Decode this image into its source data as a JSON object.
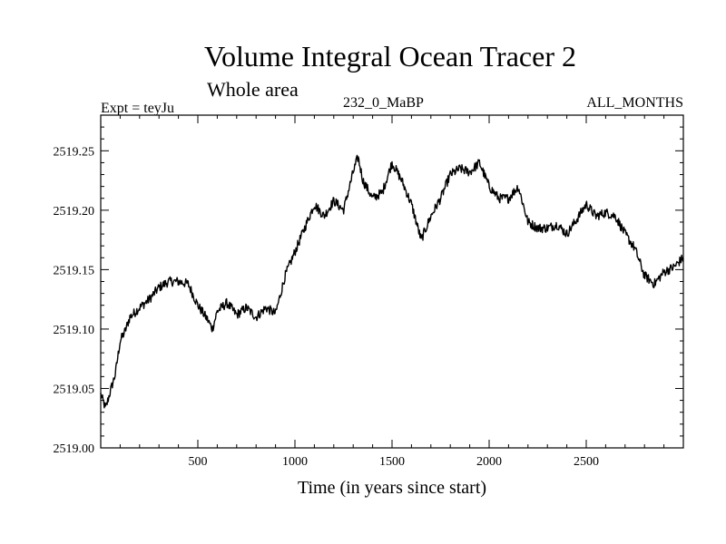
{
  "chart_data": {
    "type": "line",
    "title": "Volume Integral Ocean Tracer 2",
    "subtitle": "Whole area",
    "header_left": "Expt = teyJu",
    "header_center": "232_0_MaBP",
    "header_right": "ALL_MONTHS",
    "xlabel": "Time (in years since start)",
    "ylabel": "",
    "xlim": [
      0,
      3000
    ],
    "ylim": [
      2519.0,
      2519.28
    ],
    "x_ticks": [
      500,
      1000,
      1500,
      2000,
      2500
    ],
    "x_tick_labels": [
      "500",
      "1000",
      "1500",
      "2000",
      "2500"
    ],
    "y_ticks": [
      2519.0,
      2519.05,
      2519.1,
      2519.15,
      2519.2,
      2519.25
    ],
    "y_tick_labels": [
      "2519.00",
      "2519.05",
      "2519.10",
      "2519.15",
      "2519.20",
      "2519.25"
    ],
    "grid": false,
    "series": [
      {
        "color": "#000000",
        "x": [
          0,
          25,
          50,
          75,
          100,
          125,
          150,
          200,
          250,
          300,
          350,
          400,
          450,
          500,
          550,
          575,
          600,
          650,
          700,
          750,
          800,
          850,
          900,
          950,
          1000,
          1050,
          1100,
          1150,
          1200,
          1250,
          1300,
          1325,
          1350,
          1400,
          1450,
          1500,
          1550,
          1600,
          1650,
          1700,
          1750,
          1800,
          1850,
          1900,
          1950,
          2000,
          2050,
          2100,
          2150,
          2200,
          2250,
          2300,
          2350,
          2400,
          2450,
          2500,
          2550,
          2600,
          2650,
          2700,
          2750,
          2800,
          2850,
          2900,
          2950,
          3000
        ],
        "values": [
          2519.045,
          2519.033,
          2519.048,
          2519.062,
          2519.09,
          2519.098,
          2519.11,
          2519.118,
          2519.125,
          2519.135,
          2519.14,
          2519.14,
          2519.138,
          2519.12,
          2519.108,
          2519.1,
          2519.115,
          2519.122,
          2519.112,
          2519.118,
          2519.11,
          2519.118,
          2519.113,
          2519.145,
          2519.165,
          2519.185,
          2519.205,
          2519.195,
          2519.208,
          2519.2,
          2519.232,
          2519.245,
          2519.225,
          2519.21,
          2519.215,
          2519.24,
          2519.225,
          2519.205,
          2519.175,
          2519.195,
          2519.21,
          2519.23,
          2519.235,
          2519.232,
          2519.24,
          2519.22,
          2519.21,
          2519.21,
          2519.22,
          2519.19,
          2519.185,
          2519.185,
          2519.188,
          2519.18,
          2519.192,
          2519.205,
          2519.195,
          2519.198,
          2519.195,
          2519.18,
          2519.168,
          2519.145,
          2519.138,
          2519.148,
          2519.152,
          2519.16
        ]
      }
    ]
  }
}
